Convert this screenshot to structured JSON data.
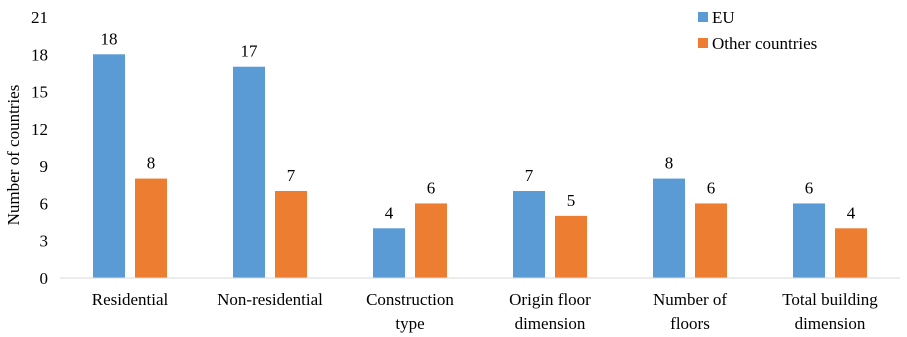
{
  "chart_data": {
    "type": "bar",
    "categories": [
      [
        "Residential"
      ],
      [
        "Non-residential"
      ],
      [
        "Construction",
        "type"
      ],
      [
        "Origin floor",
        "dimension"
      ],
      [
        "Number of",
        "floors"
      ],
      [
        "Total building",
        "dimension"
      ]
    ],
    "series": [
      {
        "name": "EU",
        "values": [
          18,
          17,
          4,
          7,
          8,
          6
        ],
        "color": "#5b9bd5"
      },
      {
        "name": "Other countries",
        "values": [
          8,
          7,
          6,
          5,
          6,
          4
        ],
        "color": "#ed7d31"
      }
    ],
    "yticks": [
      0,
      3,
      6,
      9,
      12,
      15,
      18,
      21
    ],
    "ylim": [
      0,
      21
    ],
    "ylabel": "Number of countries",
    "xlabel": "",
    "title": "",
    "grid": false,
    "legend": "top-right"
  }
}
